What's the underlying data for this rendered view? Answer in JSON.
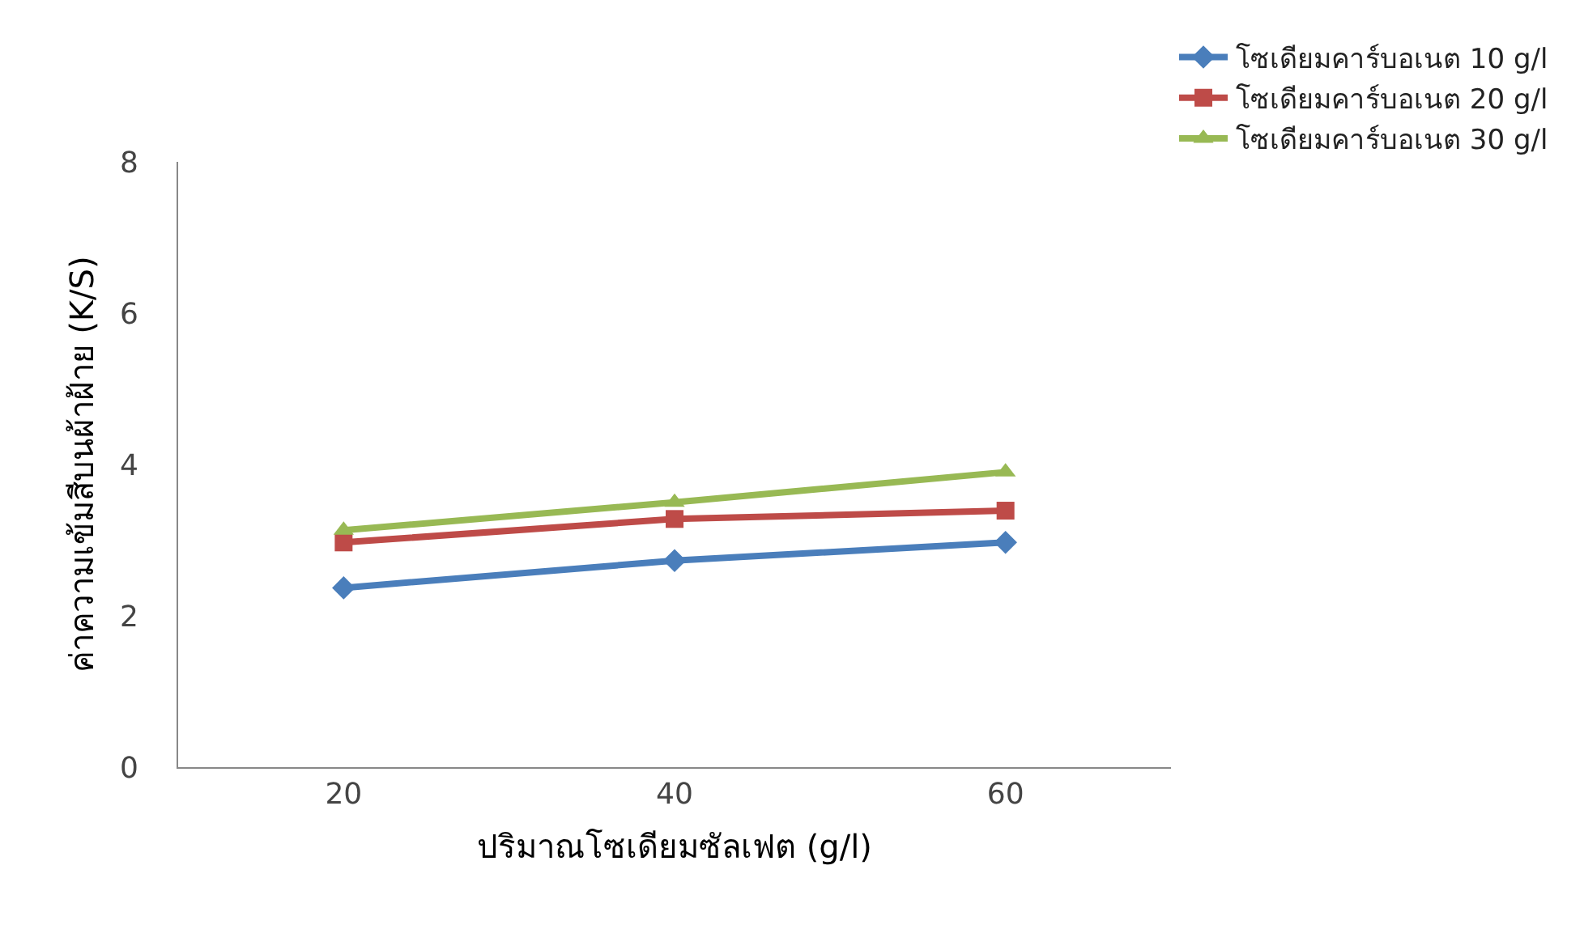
{
  "chart_data": {
    "type": "line",
    "xlabel": "ปริมาณโซเดียมซัลเฟต (g/l)",
    "ylabel": "ค่าความเข้มสีบนผ้าฝ้าย (K/S)",
    "categories": [
      "20",
      "40",
      "60"
    ],
    "series": [
      {
        "name": "โซเดียมคาร์บอเนต 10 g/l",
        "color": "#4a7ebb",
        "marker": "diamond",
        "values": [
          2.37,
          2.73,
          2.97
        ]
      },
      {
        "name": "โซเดียมคาร์บอเนต 20 g/l",
        "color": "#be4b48",
        "marker": "square",
        "values": [
          2.97,
          3.28,
          3.39
        ]
      },
      {
        "name": "โซเดียมคาร์บอเนต 30 g/l",
        "color": "#98b954",
        "marker": "triangle",
        "values": [
          3.13,
          3.5,
          3.9
        ]
      }
    ],
    "ylim": [
      0,
      8
    ],
    "yticks": [
      0,
      2,
      4,
      6,
      8
    ],
    "legend": "top right",
    "line_style": "solid"
  }
}
